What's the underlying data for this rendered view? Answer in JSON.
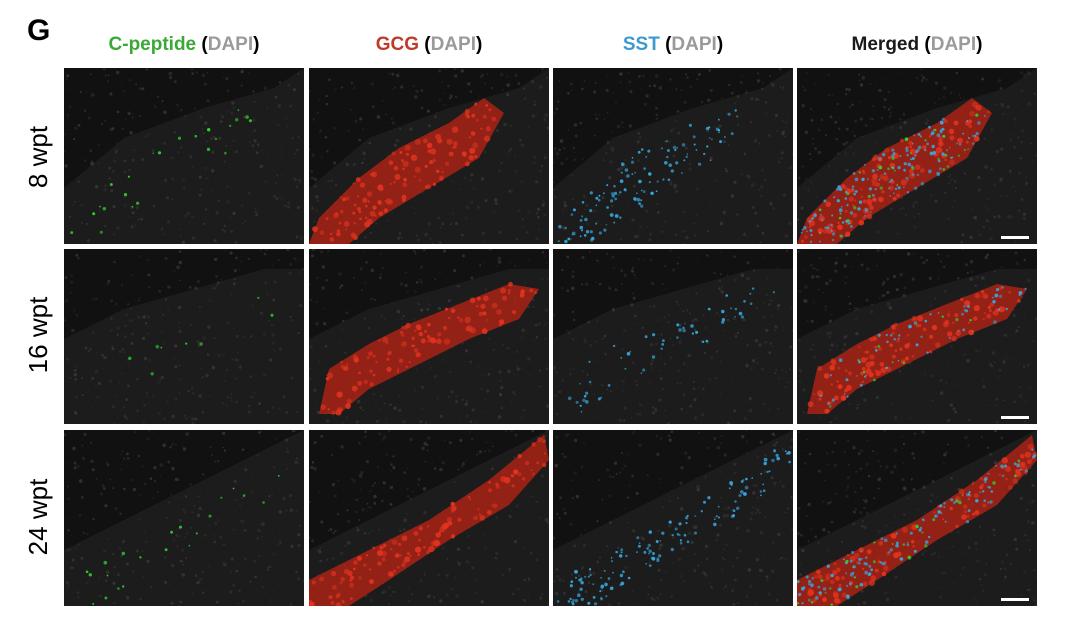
{
  "panel_letter": "G",
  "columns": [
    {
      "main": "C-peptide",
      "suffix_open": " (",
      "suffix_name": "DAPI",
      "suffix_close": ")",
      "color": "#3aa935"
    },
    {
      "main": "GCG",
      "suffix_open": " (",
      "suffix_name": "DAPI",
      "suffix_close": ")",
      "color": "#c0392b"
    },
    {
      "main": "SST",
      "suffix_open": " (",
      "suffix_name": "DAPI",
      "suffix_close": ")",
      "color": "#3d9ad1"
    },
    {
      "main": "Merged",
      "suffix_open": " (",
      "suffix_name": "DAPI",
      "suffix_close": ")",
      "color": "#1a1a1a"
    }
  ],
  "dapi_color": "#9a9a9a",
  "rows": [
    {
      "label": "8 wpt"
    },
    {
      "label": "16 wpt"
    },
    {
      "label": "24 wpt"
    }
  ],
  "channel_colors": {
    "c_peptide": "#2fd12f",
    "gcg": "#e0331f",
    "sst": "#37a8e0",
    "dapi_tissue": "#3a3a3a",
    "background": "#0b0b0b"
  }
}
